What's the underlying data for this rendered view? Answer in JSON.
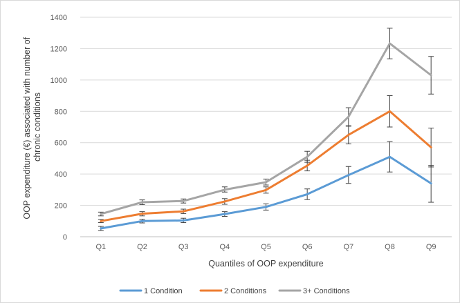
{
  "chart_data": {
    "type": "line",
    "categories": [
      "Q1",
      "Q2",
      "Q3",
      "Q4",
      "Q5",
      "Q6",
      "Q7",
      "Q8",
      "Q9"
    ],
    "series": [
      {
        "name": "1 Condition",
        "color": "#5b9bd5",
        "values": [
          53,
          100,
          104,
          145,
          190,
          271,
          393,
          510,
          340
        ],
        "error_low": [
          40,
          88,
          90,
          130,
          170,
          237,
          340,
          413,
          220
        ],
        "error_high": [
          66,
          112,
          118,
          160,
          210,
          305,
          448,
          607,
          455
        ]
      },
      {
        "name": "2 Conditions",
        "color": "#ed7d31",
        "values": [
          100,
          147,
          162,
          225,
          298,
          454,
          650,
          800,
          570
        ],
        "error_low": [
          90,
          133,
          148,
          207,
          278,
          420,
          592,
          700,
          445
        ],
        "error_high": [
          110,
          160,
          176,
          243,
          318,
          488,
          708,
          900,
          693
        ]
      },
      {
        "name": "3+ Conditions",
        "color": "#a5a5a5",
        "values": [
          145,
          220,
          228,
          300,
          348,
          510,
          765,
          1233,
          1030
        ],
        "error_low": [
          133,
          205,
          215,
          285,
          330,
          475,
          705,
          1135,
          910
        ],
        "error_high": [
          157,
          235,
          241,
          318,
          368,
          545,
          823,
          1330,
          1150
        ]
      }
    ],
    "ylim": [
      0,
      1400
    ],
    "yticks": [
      0,
      200,
      400,
      600,
      800,
      1000,
      1200,
      1400
    ],
    "xlabel": "Quantiles of OOP expenditure",
    "ylabel_lines": [
      "OOP expenditure (€) associated with number of",
      "chronic conditions"
    ],
    "grid": true,
    "legend_position": "bottom"
  }
}
